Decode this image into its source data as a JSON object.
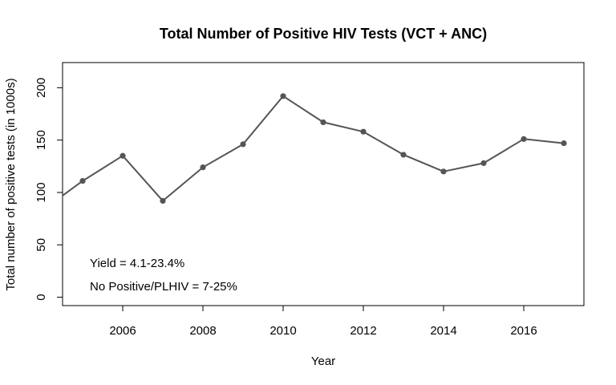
{
  "chart_data": {
    "type": "line",
    "title": "Total Number of Positive HIV Tests (VCT + ANC)",
    "xlabel": "Year",
    "ylabel": "Total number of positive tests (in 1000s)",
    "xlim": [
      2004.5,
      2017.5
    ],
    "ylim": [
      -8,
      224
    ],
    "x_ticks": [
      2006,
      2008,
      2010,
      2012,
      2014,
      2016
    ],
    "y_ticks": [
      0,
      50,
      100,
      150,
      200
    ],
    "grid": false,
    "line_color": "#555555",
    "series": [
      {
        "x": [
          2004,
          2005,
          2006,
          2007,
          2008,
          2009,
          2010,
          2011,
          2012,
          2013,
          2014,
          2015,
          2016,
          2017
        ],
        "values": [
          83,
          111,
          135,
          92,
          124,
          146,
          192,
          167,
          158,
          136,
          120,
          128,
          151,
          147
        ]
      }
    ],
    "annotations": [
      "Yield = 4.1-23.4%",
      "No Positive/PLHIV = 7-25%"
    ]
  }
}
